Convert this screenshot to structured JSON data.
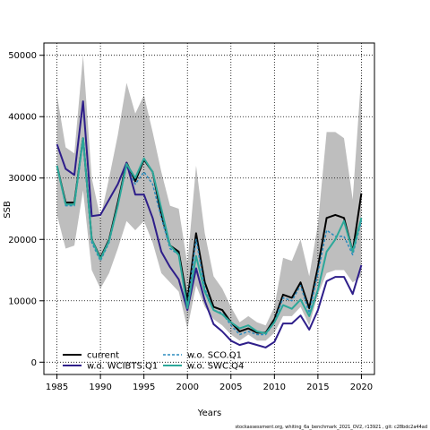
{
  "chart_data": {
    "type": "line",
    "xlabel": "Years",
    "ylabel": "SSB",
    "xlim": [
      1983.5,
      2021.5
    ],
    "ylim": [
      -2000,
      52000
    ],
    "x_ticks": [
      1985,
      1990,
      1995,
      2000,
      2005,
      2010,
      2015,
      2020
    ],
    "y_ticks": [
      0,
      10000,
      20000,
      30000,
      40000,
      50000
    ],
    "grid": true,
    "legend_position": "bottom-left",
    "footer": "stockassessment.org, whiting_6a_benchmark_2021_OV2, r13921 , git: c28bdc2a44ad",
    "x": [
      1985,
      1986,
      1987,
      1988,
      1989,
      1990,
      1991,
      1992,
      1993,
      1994,
      1995,
      1996,
      1997,
      1998,
      1999,
      2000,
      2001,
      2002,
      2003,
      2004,
      2005,
      2006,
      2007,
      2008,
      2009,
      2010,
      2011,
      2012,
      2013,
      2014,
      2015,
      2016,
      2017,
      2018,
      2019,
      2020
    ],
    "band": {
      "color": "#bebebe",
      "upper": [
        43500,
        35000,
        34000,
        50000,
        30000,
        23500,
        30000,
        37000,
        45500,
        40500,
        43500,
        37500,
        31000,
        25500,
        25000,
        16000,
        32000,
        21000,
        14000,
        12000,
        9000,
        6500,
        7500,
        6500,
        6000,
        9000,
        17000,
        16500,
        20000,
        14000,
        22500,
        37500,
        37500,
        36500,
        26500,
        47000
      ],
      "lower": [
        24000,
        18500,
        19000,
        28000,
        15000,
        12000,
        14500,
        18500,
        23000,
        21500,
        23000,
        19500,
        14500,
        13000,
        11500,
        5500,
        12500,
        9000,
        7000,
        6000,
        4500,
        3500,
        4500,
        3500,
        3500,
        4800,
        7500,
        7500,
        9000,
        6000,
        11000,
        14500,
        15000,
        15000,
        13000,
        14000
      ]
    },
    "series": [
      {
        "name": "current",
        "color": "#000000",
        "width": 2,
        "dash": "",
        "values": [
          32000,
          26000,
          26000,
          36500,
          20000,
          17000,
          20000,
          26000,
          32500,
          29500,
          33000,
          31000,
          24000,
          19000,
          18000,
          10000,
          21000,
          13000,
          9000,
          8500,
          6500,
          5000,
          5500,
          4800,
          4800,
          7000,
          11000,
          10500,
          13000,
          8800,
          15500,
          23500,
          24000,
          23500,
          18000,
          27500
        ]
      },
      {
        "name": "w.o. SCO.Q1",
        "color": "#2b8cbe",
        "width": 1.5,
        "dash": "3,2",
        "values": [
          32000,
          25500,
          25500,
          36000,
          19500,
          16500,
          19500,
          25500,
          32000,
          29000,
          31000,
          29000,
          23500,
          18500,
          17500,
          9000,
          20000,
          12000,
          8500,
          8000,
          6000,
          4500,
          5000,
          4500,
          4500,
          6500,
          10500,
          10000,
          12500,
          8000,
          14500,
          21500,
          20500,
          20500,
          17500,
          23000
        ]
      },
      {
        "name": "w.o. WCIBTS.Q1",
        "color": "#2e1e8a",
        "width": 2,
        "dash": "",
        "values": [
          35500,
          31500,
          30500,
          42500,
          23800,
          24000,
          26500,
          29000,
          32500,
          27300,
          27300,
          23500,
          18000,
          15500,
          13500,
          8500,
          15300,
          10000,
          6200,
          5000,
          3500,
          2800,
          3200,
          2800,
          2400,
          3300,
          6300,
          6300,
          7600,
          5300,
          8500,
          13200,
          13900,
          13900,
          11100,
          15800
        ]
      },
      {
        "name": "w.o. SWC.Q4",
        "color": "#2ca89a",
        "width": 2,
        "dash": "",
        "values": [
          32000,
          25700,
          25700,
          36500,
          20000,
          16800,
          19800,
          25500,
          32300,
          30000,
          33200,
          31000,
          25000,
          19000,
          17500,
          8800,
          17300,
          11500,
          8500,
          7800,
          6500,
          5500,
          6000,
          5000,
          4700,
          6500,
          9300,
          8700,
          10200,
          7500,
          11800,
          18000,
          20000,
          23000,
          18000,
          23500
        ]
      }
    ],
    "legend": {
      "columns": [
        [
          "current",
          "w.o. WCIBTS.Q1"
        ],
        [
          "w.o. SCO.Q1",
          "w.o. SWC.Q4"
        ]
      ]
    }
  }
}
